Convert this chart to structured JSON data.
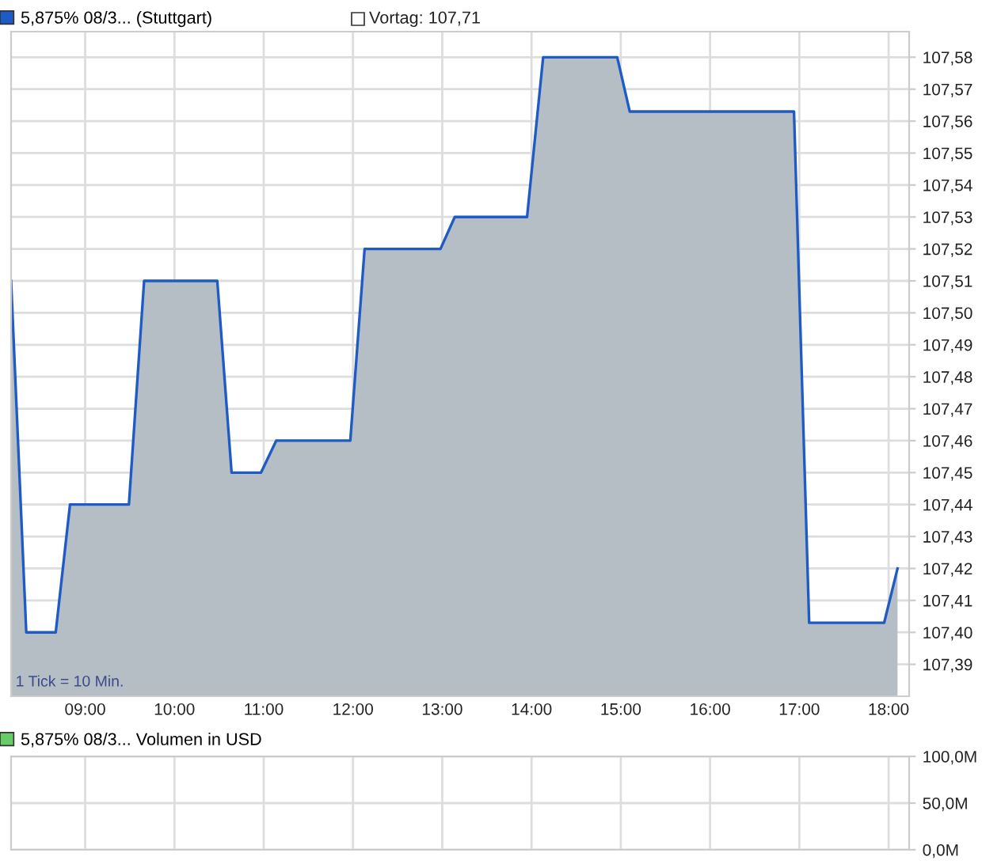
{
  "chart_data": [
    {
      "type": "area",
      "legend": "top left",
      "grid": true,
      "tick_labels": true,
      "x": [
        8.17,
        8.34,
        8.67,
        8.83,
        9.49,
        9.66,
        10.48,
        10.64,
        10.97,
        11.14,
        11.97,
        12.13,
        12.98,
        13.14,
        13.95,
        14.13,
        14.96,
        15.1,
        16.94,
        17.11,
        17.95,
        18.1
      ],
      "series": [
        {
          "name": "5,875% 08/3... (Stuttgart)",
          "color": "#1f5bc6",
          "values": [
            107.51,
            107.4,
            107.4,
            107.44,
            107.44,
            107.51,
            107.51,
            107.45,
            107.45,
            107.46,
            107.46,
            107.52,
            107.52,
            107.53,
            107.53,
            107.58,
            107.58,
            107.563,
            107.563,
            107.403,
            107.403,
            107.42
          ]
        }
      ],
      "xlim": [
        8.17,
        18.23
      ],
      "ylim": [
        107.38,
        107.588
      ],
      "xticks": [
        {
          "value": 9,
          "label": "09:00"
        },
        {
          "value": 10,
          "label": "10:00"
        },
        {
          "value": 11,
          "label": "11:00"
        },
        {
          "value": 12,
          "label": "12:00"
        },
        {
          "value": 13,
          "label": "13:00"
        },
        {
          "value": 14,
          "label": "14:00"
        },
        {
          "value": 15,
          "label": "15:00"
        },
        {
          "value": 16,
          "label": "16:00"
        },
        {
          "value": 17,
          "label": "17:00"
        },
        {
          "value": 18,
          "label": "18:00"
        }
      ],
      "yticks": [
        {
          "value": 107.39,
          "label": "107,39"
        },
        {
          "value": 107.4,
          "label": "107,40"
        },
        {
          "value": 107.41,
          "label": "107,41"
        },
        {
          "value": 107.42,
          "label": "107,42"
        },
        {
          "value": 107.43,
          "label": "107,43"
        },
        {
          "value": 107.44,
          "label": "107,44"
        },
        {
          "value": 107.45,
          "label": "107,45"
        },
        {
          "value": 107.46,
          "label": "107,46"
        },
        {
          "value": 107.47,
          "label": "107,47"
        },
        {
          "value": 107.48,
          "label": "107,48"
        },
        {
          "value": 107.49,
          "label": "107,49"
        },
        {
          "value": 107.5,
          "label": "107,50"
        },
        {
          "value": 107.51,
          "label": "107,51"
        },
        {
          "value": 107.52,
          "label": "107,52"
        },
        {
          "value": 107.53,
          "label": "107,53"
        },
        {
          "value": 107.54,
          "label": "107,54"
        },
        {
          "value": 107.55,
          "label": "107,55"
        },
        {
          "value": 107.56,
          "label": "107,56"
        },
        {
          "value": 107.57,
          "label": "107,57"
        },
        {
          "value": 107.58,
          "label": "107,58"
        }
      ],
      "annotations": [
        "Vortag: 107,71",
        "1 Tick = 10 Min."
      ]
    },
    {
      "type": "bar",
      "legend": "top left",
      "grid": true,
      "tick_labels": "y",
      "series": [
        {
          "name": "5,875% 08/3... Volumen in USD",
          "color": "#66cc66"
        }
      ],
      "ylim": [
        0,
        100
      ],
      "yticks": [
        {
          "value": 0,
          "label": "0,0M"
        },
        {
          "value": 50,
          "label": "50,0M"
        },
        {
          "value": 100,
          "label": "100,0M"
        }
      ]
    }
  ]
}
